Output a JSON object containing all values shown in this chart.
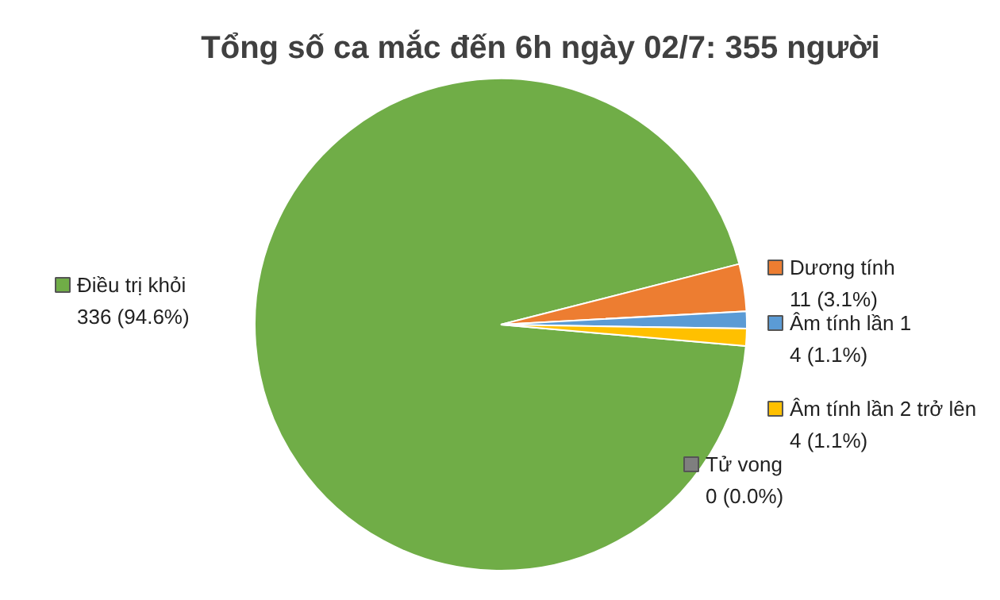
{
  "chart_data": {
    "type": "pie",
    "title": "Tổng số ca mắc đến 6h ngày 02/7: 355 người",
    "categories": [
      "Điều trị khỏi",
      "Dương tính",
      "Âm tính lần 1",
      "Âm tính lần 2 trở lên",
      "Tử vong"
    ],
    "values": [
      336,
      11,
      4,
      4,
      0
    ],
    "colors": [
      "#70ad47",
      "#ed7d31",
      "#5b9bd5",
      "#ffc000",
      "#7f7f7f"
    ],
    "value_labels": [
      "336 (94.6%)",
      "11 (3.1%)",
      "4 (1.1%)",
      "4 (1.1%)",
      "0 (0.0%)"
    ],
    "legend": "right"
  }
}
